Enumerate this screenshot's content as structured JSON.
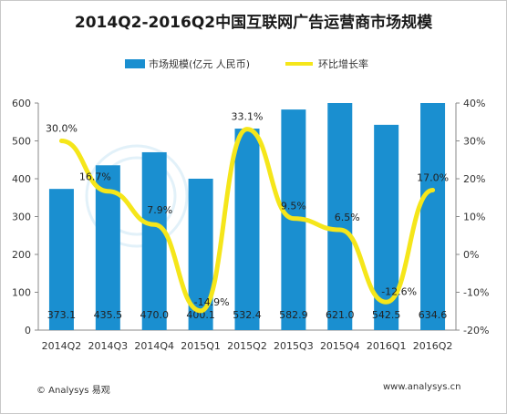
{
  "title": "2014Q2-2016Q2中国互联网广告运营商市场规模",
  "chart_data": {
    "type": "bar",
    "categories": [
      "2014Q2",
      "2014Q3",
      "2014Q4",
      "2015Q1",
      "2015Q2",
      "2015Q3",
      "2015Q4",
      "2016Q1",
      "2016Q2"
    ],
    "series": [
      {
        "name": "市场规模(亿元 人民币)",
        "type": "bar",
        "axis": "left",
        "color": "#1a8fd0",
        "values": [
          373.1,
          435.5,
          470.0,
          400.1,
          532.4,
          582.9,
          621.0,
          542.5,
          634.6
        ],
        "labels": [
          "373.1",
          "435.5",
          "470.0",
          "400.1",
          "532.4",
          "582.9",
          "621.0",
          "542.5",
          "634.6"
        ]
      },
      {
        "name": "环比增长率",
        "type": "line",
        "axis": "right",
        "color": "#f5e61a",
        "values": [
          30.0,
          16.7,
          7.9,
          -14.9,
          33.1,
          9.5,
          6.5,
          -12.6,
          17.0
        ],
        "labels": [
          "30.0%",
          "16.7%",
          "7.9%",
          "-14.9%",
          "33.1%",
          "9.5%",
          "6.5%",
          "-12.6%",
          "17.0%"
        ]
      }
    ],
    "y_left": {
      "min": 0,
      "max": 600,
      "ticks": [
        "0",
        "100",
        "200",
        "300",
        "400",
        "500",
        "600"
      ]
    },
    "y_right": {
      "min": -20,
      "max": 40,
      "ticks": [
        "-20%",
        "-10%",
        "0%",
        "10%",
        "20%",
        "30%",
        "40%"
      ]
    },
    "legend_position": "top",
    "grid": false
  },
  "footer": {
    "source": "© Analysys 易观",
    "website": "www.analysys.cn"
  }
}
